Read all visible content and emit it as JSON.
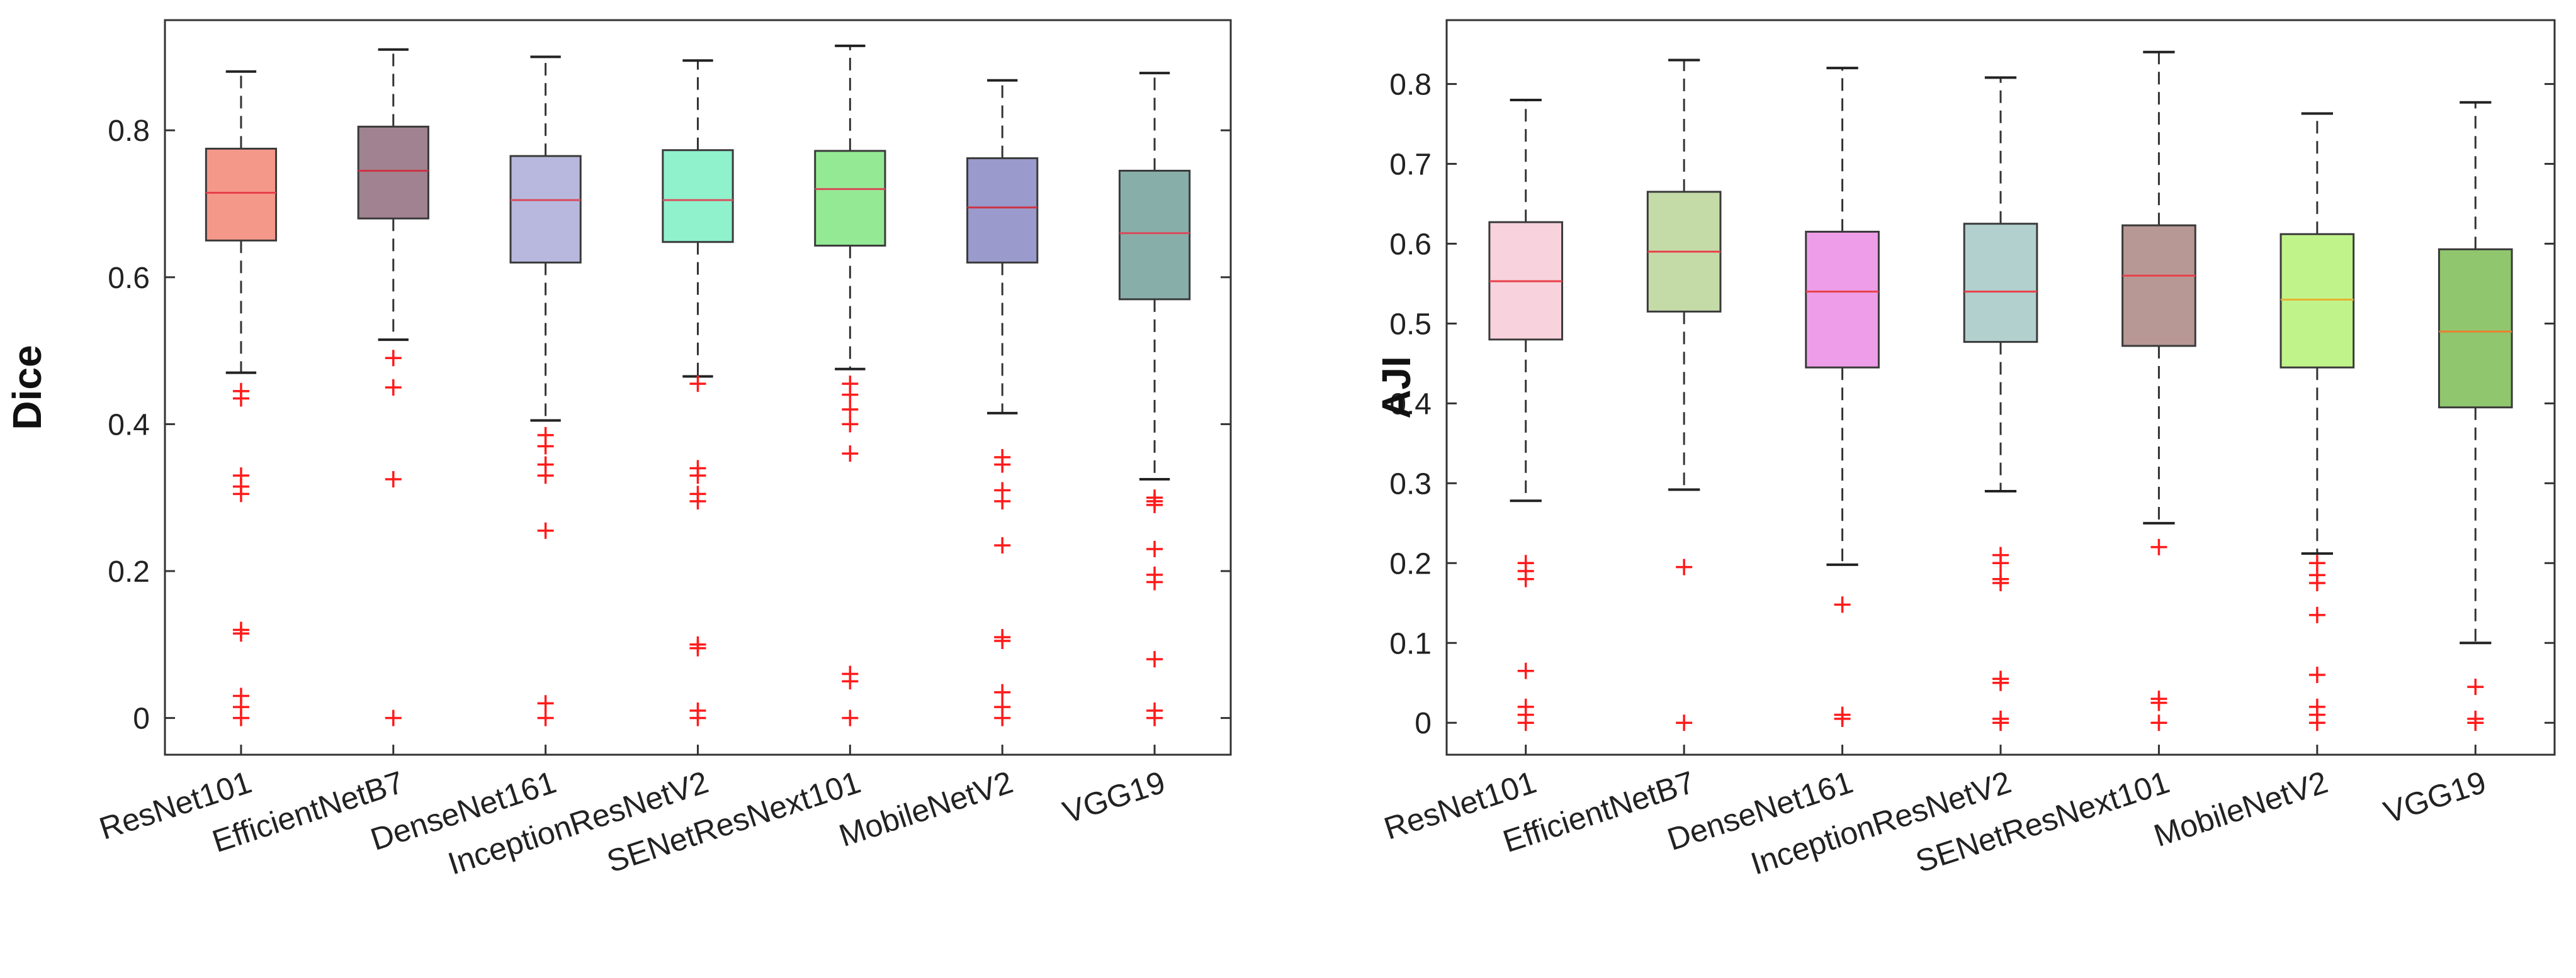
{
  "chart_data": [
    {
      "type": "box",
      "ylabel": "Dice",
      "xlabel": "",
      "ylim": [
        -0.05,
        0.95
      ],
      "yticks": [
        0,
        0.2,
        0.4,
        0.6,
        0.8
      ],
      "ytick_labels": [
        "0",
        "0.2",
        "0.4",
        "0.6",
        "0.8"
      ],
      "grid": false,
      "categories": [
        "ResNet101",
        "EfficientNetB7",
        "DenseNet161",
        "InceptionResNetV2",
        "SENetResNext101",
        "MobileNetV2",
        "VGG19"
      ],
      "boxes": [
        {
          "fill": "#f4998a",
          "median_color": "#e8404a",
          "whisker_low": 0.47,
          "q1": 0.65,
          "median": 0.715,
          "q3": 0.775,
          "whisker_high": 0.88,
          "outliers": [
            0.445,
            0.435,
            0.33,
            0.315,
            0.305,
            0.12,
            0.115,
            0.03,
            0.015,
            0.0
          ]
        },
        {
          "fill": "#a08290",
          "median_color": "#cc3344",
          "whisker_low": 0.515,
          "q1": 0.68,
          "median": 0.745,
          "q3": 0.805,
          "whisker_high": 0.91,
          "outliers": [
            0.49,
            0.45,
            0.325,
            0.0
          ]
        },
        {
          "fill": "#b8b8de",
          "median_color": "#d84a5a",
          "whisker_low": 0.405,
          "q1": 0.62,
          "median": 0.705,
          "q3": 0.765,
          "whisker_high": 0.9,
          "outliers": [
            0.385,
            0.37,
            0.345,
            0.33,
            0.255,
            0.02,
            0.0
          ]
        },
        {
          "fill": "#8ff2cc",
          "median_color": "#dd5060",
          "whisker_low": 0.465,
          "q1": 0.648,
          "median": 0.705,
          "q3": 0.773,
          "whisker_high": 0.895,
          "outliers": [
            0.455,
            0.34,
            0.33,
            0.305,
            0.295,
            0.1,
            0.095,
            0.01,
            0.0
          ]
        },
        {
          "fill": "#94ea94",
          "median_color": "#d84a5a",
          "whisker_low": 0.475,
          "q1": 0.643,
          "median": 0.72,
          "q3": 0.772,
          "whisker_high": 0.915,
          "outliers": [
            0.455,
            0.44,
            0.42,
            0.4,
            0.36,
            0.06,
            0.05,
            0.0
          ]
        },
        {
          "fill": "#9a9acc",
          "median_color": "#cc3344",
          "whisker_low": 0.415,
          "q1": 0.62,
          "median": 0.695,
          "q3": 0.762,
          "whisker_high": 0.868,
          "outliers": [
            0.355,
            0.345,
            0.31,
            0.295,
            0.235,
            0.11,
            0.105,
            0.035,
            0.015,
            0.0
          ]
        },
        {
          "fill": "#88aeaa",
          "median_color": "#d84a5a",
          "whisker_low": 0.325,
          "q1": 0.57,
          "median": 0.66,
          "q3": 0.745,
          "whisker_high": 0.878,
          "outliers": [
            0.3,
            0.295,
            0.29,
            0.23,
            0.195,
            0.185,
            0.08,
            0.01,
            0.0
          ]
        }
      ]
    },
    {
      "type": "box",
      "ylabel": "AJI",
      "xlabel": "",
      "ylim": [
        -0.04,
        0.88
      ],
      "yticks": [
        0,
        0.1,
        0.2,
        0.3,
        0.4,
        0.5,
        0.6,
        0.7,
        0.8
      ],
      "ytick_labels": [
        "0",
        "0.1",
        "0.2",
        "0.3",
        "0.4",
        "0.5",
        "0.6",
        "0.7",
        "0.8"
      ],
      "grid": false,
      "categories": [
        "ResNet101",
        "EfficientNetB7",
        "DenseNet161",
        "InceptionResNetV2",
        "SENetResNext101",
        "MobileNetV2",
        "VGG19"
      ],
      "boxes": [
        {
          "fill": "#f8d2dc",
          "median_color": "#e8404a",
          "whisker_low": 0.278,
          "q1": 0.48,
          "median": 0.553,
          "q3": 0.627,
          "whisker_high": 0.78,
          "outliers": [
            0.2,
            0.19,
            0.18,
            0.065,
            0.02,
            0.01,
            0.0
          ]
        },
        {
          "fill": "#c4dba8",
          "median_color": "#e8404a",
          "whisker_low": 0.292,
          "q1": 0.515,
          "median": 0.59,
          "q3": 0.665,
          "whisker_high": 0.83,
          "outliers": [
            0.195,
            0.0
          ]
        },
        {
          "fill": "#ee9ee8",
          "median_color": "#e8404a",
          "whisker_low": 0.198,
          "q1": 0.445,
          "median": 0.54,
          "q3": 0.615,
          "whisker_high": 0.82,
          "outliers": [
            0.148,
            0.01,
            0.005
          ]
        },
        {
          "fill": "#b2d0ce",
          "median_color": "#e8404a",
          "whisker_low": 0.29,
          "q1": 0.477,
          "median": 0.54,
          "q3": 0.625,
          "whisker_high": 0.808,
          "outliers": [
            0.21,
            0.2,
            0.18,
            0.175,
            0.055,
            0.05,
            0.005,
            0.0
          ]
        },
        {
          "fill": "#b89894",
          "median_color": "#e8404a",
          "whisker_low": 0.25,
          "q1": 0.472,
          "median": 0.56,
          "q3": 0.623,
          "whisker_high": 0.84,
          "outliers": [
            0.22,
            0.03,
            0.025,
            0.0
          ]
        },
        {
          "fill": "#c0f48a",
          "median_color": "#e8b030",
          "whisker_low": 0.212,
          "q1": 0.445,
          "median": 0.53,
          "q3": 0.612,
          "whisker_high": 0.763,
          "outliers": [
            0.2,
            0.185,
            0.175,
            0.135,
            0.06,
            0.02,
            0.01,
            0.0
          ]
        },
        {
          "fill": "#90c66e",
          "median_color": "#e88030",
          "whisker_low": 0.1,
          "q1": 0.395,
          "median": 0.49,
          "q3": 0.593,
          "whisker_high": 0.777,
          "outliers": [
            0.045,
            0.005,
            0.0
          ]
        }
      ]
    }
  ]
}
